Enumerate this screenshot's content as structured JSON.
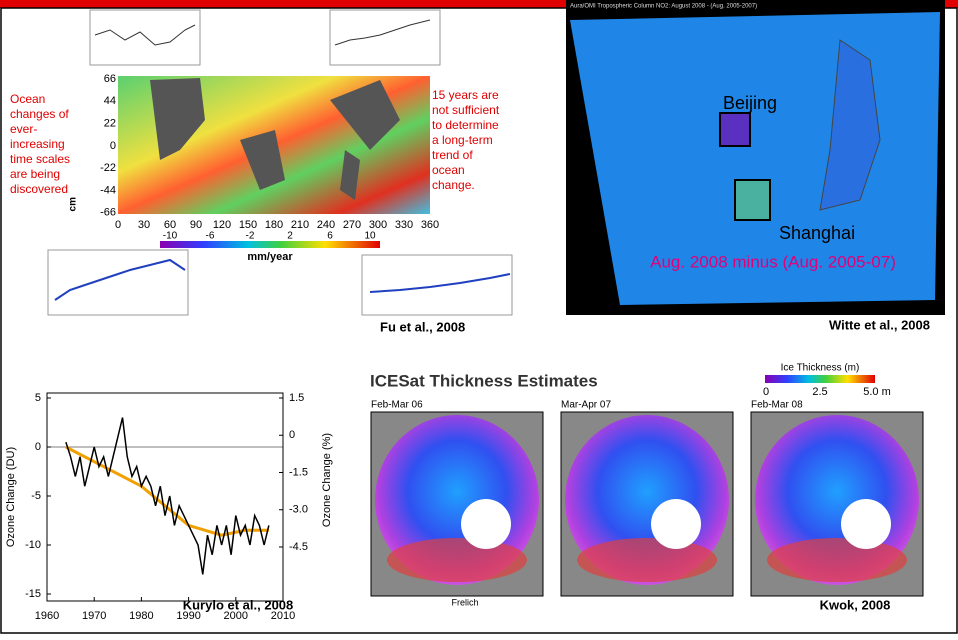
{
  "ocean_panel": {
    "left_note": [
      "Ocean",
      "changes of",
      "ever-",
      "increasing",
      "time scales",
      "are being",
      "discovered"
    ],
    "right_note": [
      "15 years are",
      "not sufficient",
      "to determine",
      "a long-term",
      "trend of",
      "ocean",
      "change."
    ],
    "lat_ticks": [
      "66",
      "44",
      "22",
      "0",
      "-22",
      "-44",
      "-66"
    ],
    "lon_ticks": [
      "0",
      "30",
      "60",
      "90",
      "120",
      "150",
      "180",
      "210",
      "240",
      "270",
      "300",
      "330",
      "360"
    ],
    "colorbar_ticks": [
      "-10",
      "-6",
      "-2",
      "2",
      "6",
      "10"
    ],
    "colorbar_unit": "mm/year",
    "inset_unit": "cm",
    "credit": "Fu et al., 2008"
  },
  "no2_panel": {
    "header": "Aura/OMI Tropospheric Column NO2:  August 2008 - (Aug. 2005-2007)",
    "city_1": "Beijing",
    "city_2": "Shanghai",
    "caption": "Aug. 2008 minus (Aug. 2005-07)",
    "credit": "Witte et al., 2008"
  },
  "ozone_panel": {
    "y_label": "Ozone Change (DU)",
    "y2_label": "Ozone Change (%)",
    "xticks": [
      1960,
      1970,
      1980,
      1990,
      2000,
      2010
    ],
    "yticks": [
      5,
      0,
      -5,
      -10,
      -15
    ],
    "y2ticks": [
      1.5,
      0,
      -1.5,
      {
        "value": -3,
        "label": "-3.0"
      },
      -4.5
    ],
    "x": [
      1964,
      1965,
      1966,
      1967,
      1968,
      1969,
      1970,
      1971,
      1972,
      1973,
      1974,
      1975,
      1976,
      1977,
      1978,
      1979,
      1980,
      1981,
      1982,
      1983,
      1984,
      1985,
      1986,
      1987,
      1988,
      1989,
      1990,
      1991,
      1992,
      1993,
      1994,
      1995,
      1996,
      1997,
      1998,
      1999,
      2000,
      2001,
      2002,
      2003,
      2004,
      2005,
      2006,
      2007
    ],
    "values": [
      0.5,
      -1,
      -3,
      -1,
      -4,
      -2,
      0,
      -2,
      -1,
      -3,
      -1,
      1,
      3,
      -1,
      -3,
      -2,
      -4,
      -3,
      -4,
      -6,
      -4,
      -7,
      -5,
      -8,
      -6,
      -7,
      -8,
      -9,
      -10,
      -13,
      -9,
      -11,
      -8,
      -10,
      -8,
      -11,
      -7,
      -9,
      -8,
      -10,
      -7,
      -8,
      -10,
      -8
    ],
    "trend": {
      "x": [
        1964,
        1970,
        1980,
        1990,
        1997,
        2002,
        2007
      ],
      "values": [
        0,
        -1.5,
        -4,
        -8,
        -9,
        -8.5,
        -8.5
      ]
    },
    "credit": "Kurylo et al., 2008"
  },
  "ice_panel": {
    "title": "ICESat Thickness Estimates",
    "legend_title": "Ice Thickness (m)",
    "legend_ticks": [
      "0",
      "2.5",
      "5.0 m"
    ],
    "maps": [
      "Feb-Mar 06",
      "Mar-Apr 07",
      "Feb-Mar 08"
    ],
    "footer": "Frelich",
    "credit": "Kwok, 2008"
  }
}
